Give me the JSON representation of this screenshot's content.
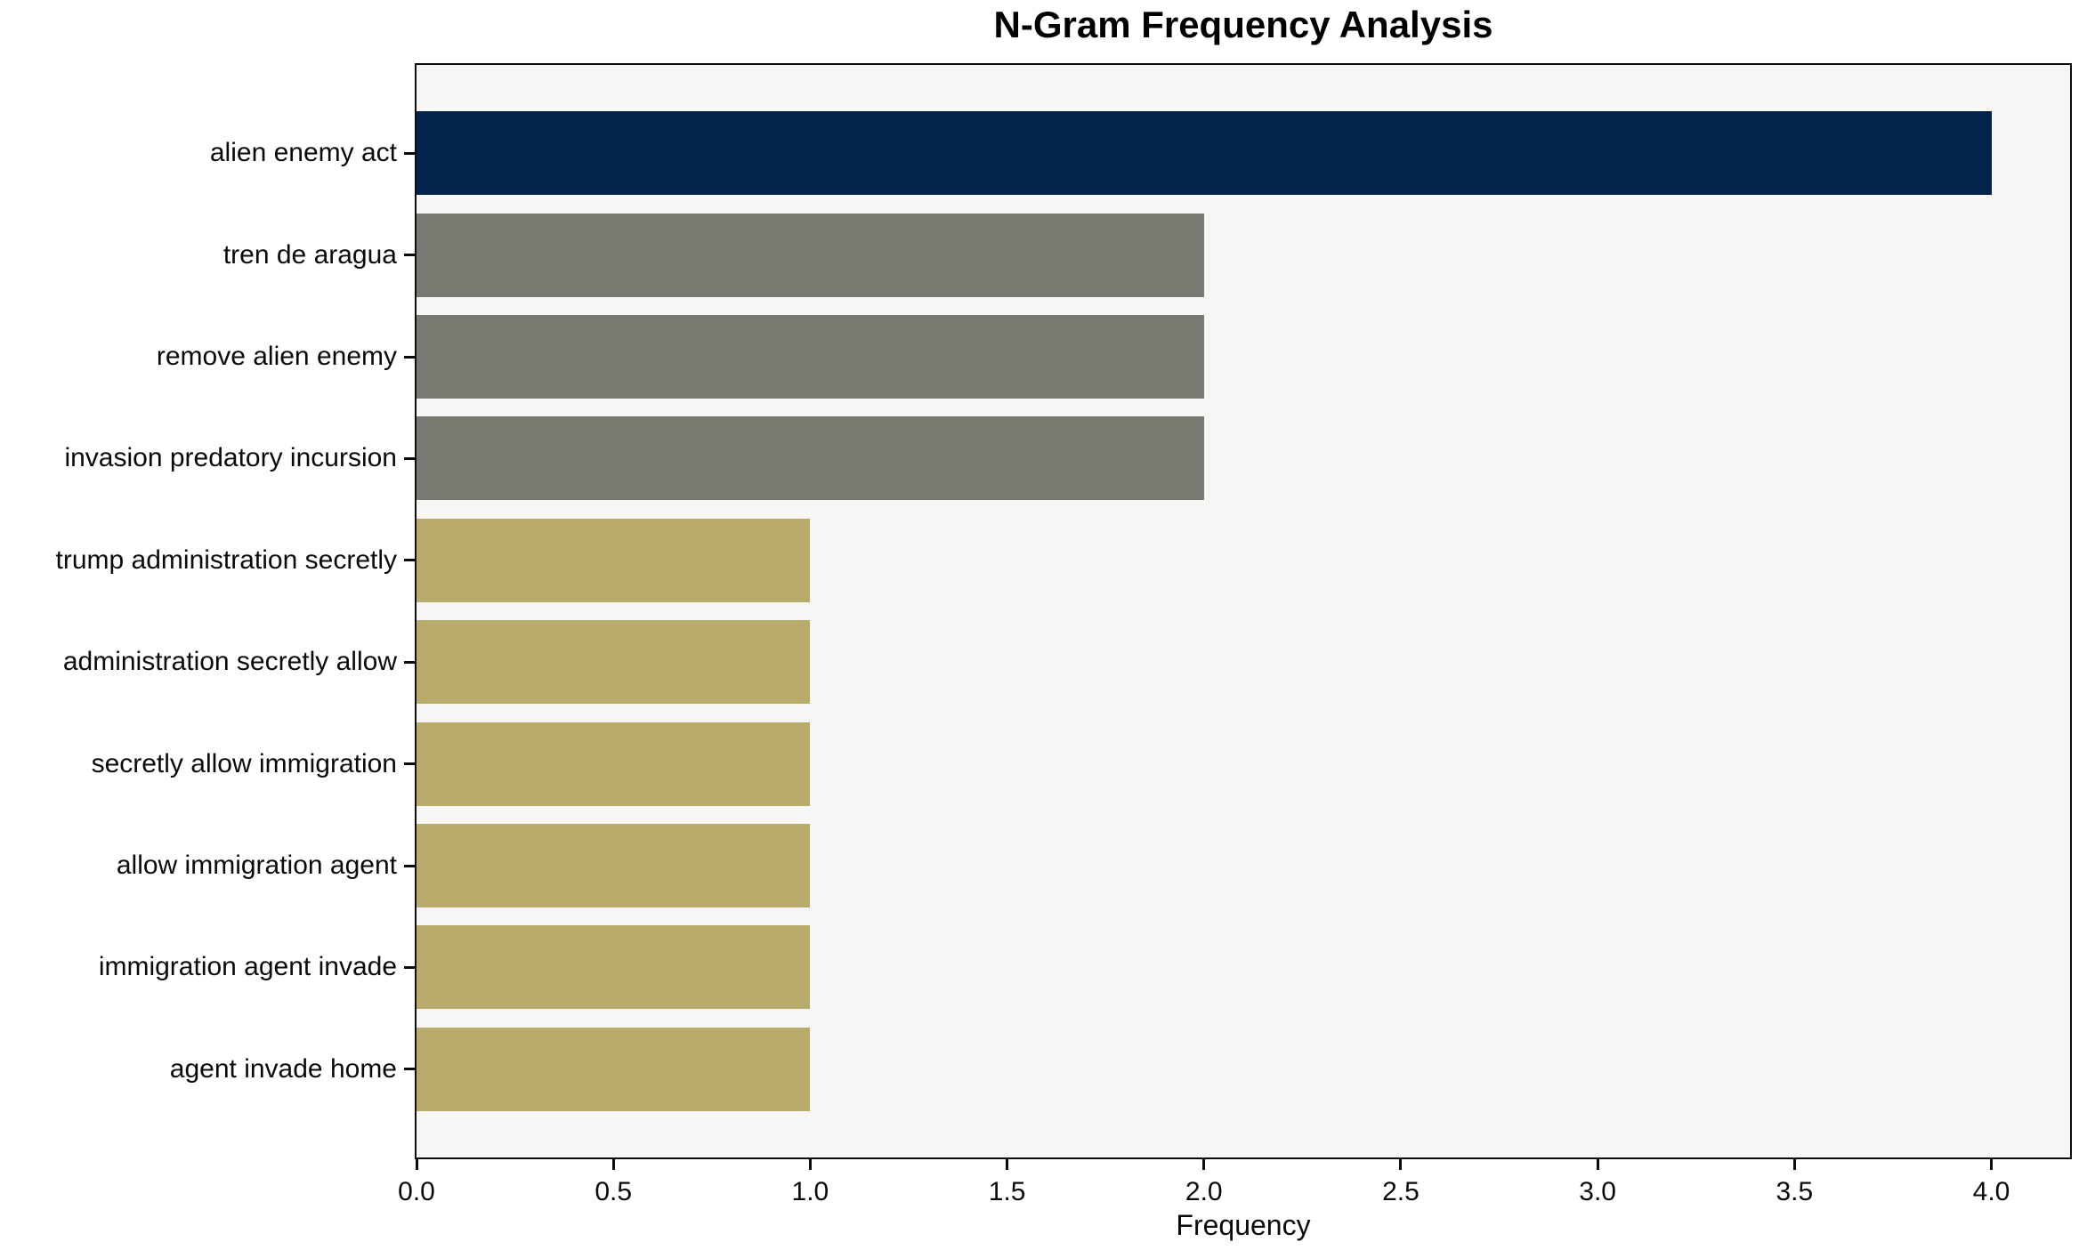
{
  "chart_data": {
    "type": "bar",
    "orientation": "horizontal",
    "title": "N-Gram Frequency Analysis",
    "xlabel": "Frequency",
    "ylabel": "",
    "categories": [
      "alien enemy act",
      "tren de aragua",
      "remove alien enemy",
      "invasion predatory incursion",
      "trump administration secretly",
      "administration secretly allow",
      "secretly allow immigration",
      "allow immigration agent",
      "immigration agent invade",
      "agent invade home"
    ],
    "values": [
      4,
      2,
      2,
      2,
      1,
      1,
      1,
      1,
      1,
      1
    ],
    "bar_colors": [
      "#02234C",
      "#7A7971",
      "#7A7971",
      "#7A7971",
      "#B9AB6B",
      "#B9AB6B",
      "#B9AB6B",
      "#B9AB6B",
      "#B9AB6B",
      "#B9AB6B"
    ],
    "xlim": [
      0,
      4.2
    ],
    "xticks": [
      0,
      0.5,
      1,
      1.5,
      2,
      2.5,
      3,
      3.5,
      4
    ],
    "xtick_labels": [
      "0.0",
      "0.5",
      "1.0",
      "1.5",
      "2.0",
      "2.5",
      "3.0",
      "3.5",
      "4.0"
    ],
    "grid": false,
    "legend": null,
    "plot_background": "#F7F6F5",
    "figure_background": "#FFFFFF",
    "spine_color": "#0d0d0d"
  }
}
